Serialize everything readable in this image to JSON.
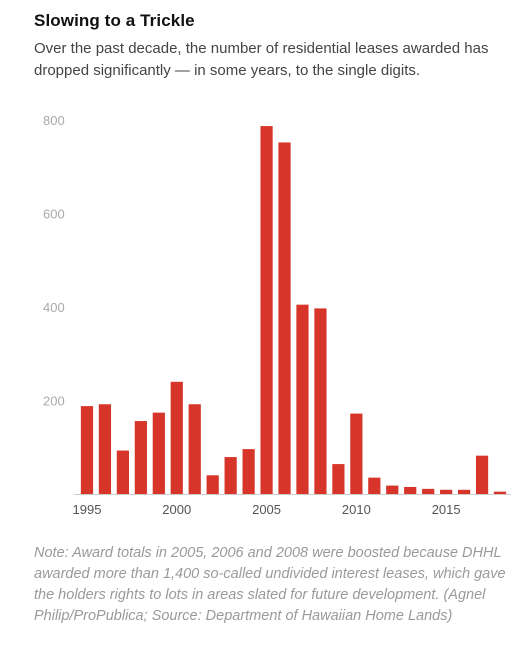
{
  "title": "Slowing to a Trickle",
  "subtitle": "Over the past decade, the number of residential leases awarded has dropped significantly — in some years, to the single digits.",
  "note": "Note: Award totals in 2005, 2006 and 2008 were boosted because DHHL awarded more than 1,400 so-called undivided interest leases, which gave the holders rights to lots in areas slated for future development. (Agnel Philip/ProPublica; Source: Department of Hawaiian Home Lands)",
  "colors": {
    "bar": "#d8352a",
    "axis": "#cccccc",
    "tick_text": "#555555",
    "y_tick_text": "#aaaaaa"
  },
  "chart_data": {
    "type": "bar",
    "title": "",
    "xlabel": "",
    "ylabel": "",
    "x": [
      1995,
      1996,
      1997,
      1998,
      1999,
      2000,
      2001,
      2002,
      2003,
      2004,
      2005,
      2006,
      2007,
      2008,
      2009,
      2010,
      2011,
      2012,
      2013,
      2014,
      2015,
      2016,
      2017,
      2018
    ],
    "values": [
      188,
      192,
      93,
      156,
      174,
      240,
      192,
      40,
      79,
      96,
      787,
      752,
      405,
      397,
      64,
      172,
      35,
      18,
      15,
      11,
      9,
      9,
      82,
      5
    ],
    "ylim": [
      0,
      800
    ],
    "y_ticks": [
      200,
      400,
      600,
      800
    ],
    "x_ticks": [
      1995,
      2000,
      2005,
      2010,
      2015
    ],
    "grid": false,
    "legend": "none"
  }
}
